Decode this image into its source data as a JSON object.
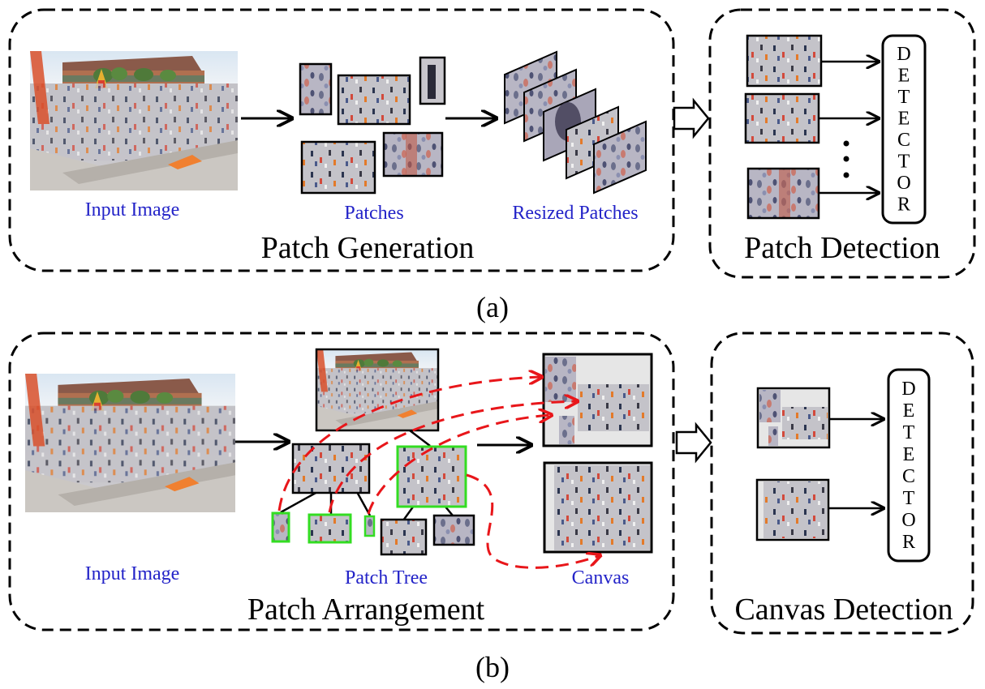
{
  "colors": {
    "label_blue": "#2323c8",
    "highlight_green": "#33dd22",
    "flow_red": "#e8161a",
    "border": "#000000"
  },
  "panel_a": {
    "caption": "(a)",
    "patch_generation": {
      "title": "Patch Generation",
      "input_label": "Input Image",
      "patches_label": "Patches",
      "resized_label": "Resized Patches"
    },
    "patch_detection": {
      "title": "Patch Detection",
      "detector_letters": [
        "D",
        "E",
        "T",
        "E",
        "C",
        "T",
        "O",
        "R"
      ]
    }
  },
  "panel_b": {
    "caption": "(b)",
    "patch_arrangement": {
      "title": "Patch Arrangement",
      "input_label": "Input Image",
      "tree_label": "Patch Tree",
      "canvas_label": "Canvas"
    },
    "canvas_detection": {
      "title": "Canvas Detection",
      "detector_letters": [
        "D",
        "E",
        "T",
        "E",
        "C",
        "T",
        "O",
        "R"
      ]
    }
  }
}
